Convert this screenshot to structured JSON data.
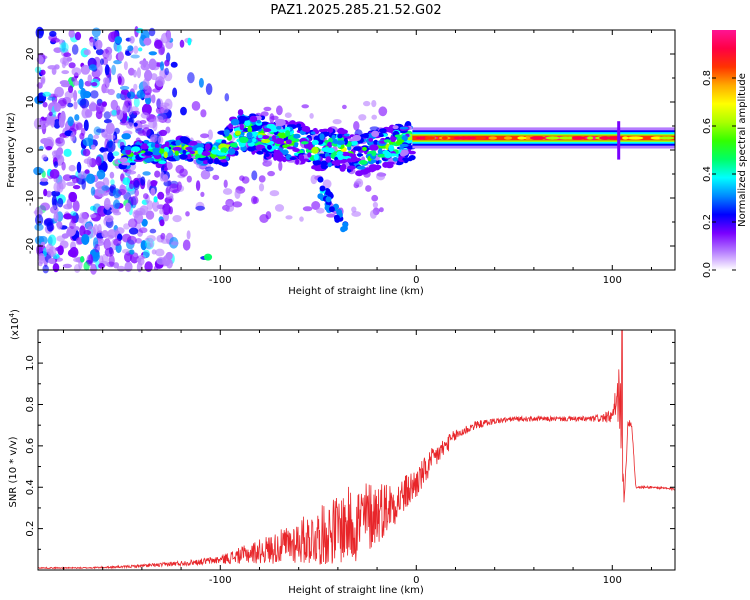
{
  "title": "PAZ1.2025.285.21.52.G02",
  "chart_data": [
    {
      "type": "heatmap",
      "xlabel": "Height of straight line (km)",
      "ylabel": "Frequency (Hz)",
      "xlim": [
        -193,
        132
      ],
      "ylim": [
        -25,
        25
      ],
      "xticks": [
        -100,
        0,
        100
      ],
      "yticks": [
        -20,
        -10,
        0,
        10,
        20
      ],
      "colorbar": {
        "label": "Normalized spectral amplitude",
        "range": [
          0,
          1
        ],
        "ticks": [
          "0.0",
          "0.2",
          "0.4",
          "0.6",
          "0.8"
        ],
        "colors": [
          "#ffffff",
          "#b57cff",
          "#7a00ff",
          "#0000ff",
          "#0088ff",
          "#00ffff",
          "#00ff66",
          "#33ff00",
          "#aaff00",
          "#ffff00",
          "#ffaa00",
          "#ff3300",
          "#ff0044",
          "#ff1493"
        ]
      },
      "ridge": {
        "description": "frequency of peak amplitude vs height",
        "x": [
          -148,
          -140,
          -130,
          -120,
          -110,
          -100,
          -90,
          -80,
          -70,
          -60,
          -50,
          -40,
          -30,
          -20,
          -10,
          0,
          10,
          20,
          30,
          40,
          50,
          60,
          70,
          80,
          90,
          100,
          110,
          120,
          132
        ],
        "y": [
          -1.5,
          0,
          -1,
          0.5,
          -1,
          -0.5,
          4,
          3,
          2,
          1.5,
          0,
          0.5,
          -1,
          0,
          1,
          2.5,
          2,
          2.5,
          2.5,
          2.5,
          2.5,
          2.5,
          2.5,
          2.5,
          2.5,
          2.5,
          2.5,
          2.5,
          2.5
        ]
      }
    },
    {
      "type": "line",
      "xlabel": "Height of straight line (km)",
      "ylabel": "SNR (10 * v/v)",
      "exponent_label": "(x10",
      "exponent": "4",
      "exponent_close": ")",
      "xlim": [
        -193,
        132
      ],
      "ylim": [
        0,
        1.16
      ],
      "xticks": [
        -100,
        0,
        100
      ],
      "yticks": [
        "0.2",
        "0.4",
        "0.6",
        "0.8",
        "1.0"
      ],
      "color": "#e8262a",
      "series": [
        {
          "name": "SNR",
          "x": [
            -193,
            -170,
            -150,
            -130,
            -110,
            -100,
            -90,
            -80,
            -70,
            -60,
            -50,
            -40,
            -30,
            -20,
            -10,
            0,
            10,
            20,
            30,
            40,
            50,
            60,
            70,
            80,
            90,
            100,
            104,
            106,
            108,
            110,
            112,
            120,
            132
          ],
          "y": [
            0.01,
            0.01,
            0.015,
            0.025,
            0.04,
            0.05,
            0.07,
            0.09,
            0.11,
            0.14,
            0.16,
            0.2,
            0.23,
            0.28,
            0.33,
            0.42,
            0.55,
            0.65,
            0.7,
            0.72,
            0.73,
            0.73,
            0.73,
            0.73,
            0.73,
            0.74,
            0.85,
            0.3,
            0.72,
            0.7,
            0.4,
            0.4,
            0.39
          ],
          "noise": [
            0.003,
            0.003,
            0.005,
            0.01,
            0.015,
            0.02,
            0.04,
            0.06,
            0.08,
            0.11,
            0.14,
            0.17,
            0.2,
            0.16,
            0.1,
            0.08,
            0.06,
            0.03,
            0.02,
            0.015,
            0.012,
            0.012,
            0.012,
            0.012,
            0.015,
            0.03,
            0.18,
            0.05,
            0.02,
            0.02,
            0.006,
            0.006,
            0.006
          ]
        }
      ],
      "peak": {
        "x": 105,
        "y": 1.16
      }
    }
  ]
}
